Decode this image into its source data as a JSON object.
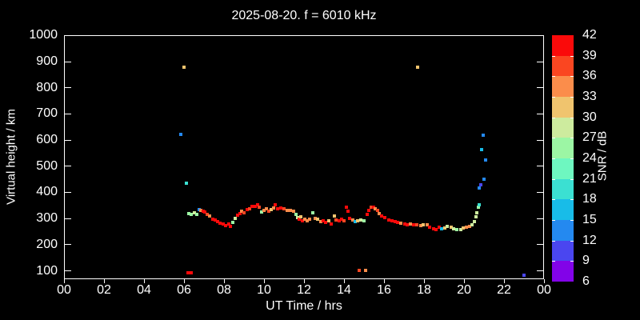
{
  "title": "2025-08-20. f = 6010 kHz",
  "colors": {
    "background": "#000000",
    "foreground": "#ffffff"
  },
  "chart_data": {
    "type": "scatter",
    "title": "2025-08-20. f = 6010 kHz",
    "xlabel": "UT Time / hrs",
    "ylabel": "Virtual height / km",
    "xlim": [
      0,
      24
    ],
    "ylim": [
      65,
      1005
    ],
    "grid": false,
    "x_ticks": [
      0,
      2,
      4,
      6,
      8,
      10,
      12,
      14,
      16,
      18,
      20,
      22,
      24
    ],
    "x_tick_labels": [
      "00",
      "02",
      "04",
      "06",
      "08",
      "10",
      "12",
      "14",
      "16",
      "18",
      "20",
      "22",
      "00"
    ],
    "y_ticks": [
      100,
      200,
      300,
      400,
      500,
      600,
      700,
      800,
      900,
      1000
    ],
    "colorbar": {
      "label": "SNR / dB",
      "position": "right",
      "ticks": [
        42,
        39,
        36,
        33,
        30,
        27,
        24,
        21,
        18,
        15,
        12,
        9,
        6
      ],
      "segments": [
        {
          "lo": 39,
          "hi": 42,
          "color": "#fa0a0a"
        },
        {
          "lo": 36,
          "hi": 39,
          "color": "#fa4621"
        },
        {
          "lo": 33,
          "hi": 36,
          "color": "#fb8d4b"
        },
        {
          "lo": 30,
          "hi": 33,
          "color": "#f0c46e"
        },
        {
          "lo": 27,
          "hi": 30,
          "color": "#cdeb9e"
        },
        {
          "lo": 24,
          "hi": 27,
          "color": "#9cf6a4"
        },
        {
          "lo": 21,
          "hi": 24,
          "color": "#6ef7c0"
        },
        {
          "lo": 18,
          "hi": 21,
          "color": "#3be0d2"
        },
        {
          "lo": 15,
          "hi": 18,
          "color": "#18bce8"
        },
        {
          "lo": 12,
          "hi": 15,
          "color": "#2489f0"
        },
        {
          "lo": 9,
          "hi": 12,
          "color": "#4a46f0"
        },
        {
          "lo": 6,
          "hi": 9,
          "color": "#8203e8"
        }
      ]
    },
    "points_format": [
      "ut_hours",
      "virtual_height_km",
      "snr_db"
    ],
    "points": [
      [
        5.8,
        625,
        13.5
      ],
      [
        5.96,
        882,
        31.5
      ],
      [
        6.08,
        437,
        19.5
      ],
      [
        6.16,
        95,
        40.5
      ],
      [
        6.3,
        95,
        40.5
      ],
      [
        6.2,
        322,
        25.5
      ],
      [
        6.33,
        318,
        25.5
      ],
      [
        6.46,
        325,
        28.5
      ],
      [
        6.58,
        320,
        25.5
      ],
      [
        6.7,
        337,
        13.5
      ],
      [
        6.8,
        334,
        34.5
      ],
      [
        6.9,
        330,
        40.5
      ],
      [
        7.0,
        327,
        40.5
      ],
      [
        7.12,
        320,
        37.5
      ],
      [
        7.25,
        312,
        34.5
      ],
      [
        7.38,
        302,
        40.5
      ],
      [
        7.5,
        296,
        40.5
      ],
      [
        7.62,
        290,
        40.5
      ],
      [
        7.75,
        285,
        40.5
      ],
      [
        7.9,
        281,
        40.5
      ],
      [
        8.05,
        276,
        40.5
      ],
      [
        8.18,
        281,
        40.5
      ],
      [
        8.28,
        274,
        40.5
      ],
      [
        8.4,
        288,
        25.5
      ],
      [
        8.52,
        305,
        28.5
      ],
      [
        8.62,
        315,
        40.5
      ],
      [
        8.75,
        322,
        40.5
      ],
      [
        8.85,
        330,
        34.5
      ],
      [
        8.96,
        325,
        37.5
      ],
      [
        9.1,
        337,
        40.5
      ],
      [
        9.22,
        341,
        37.5
      ],
      [
        9.35,
        350,
        40.5
      ],
      [
        9.5,
        350,
        40.5
      ],
      [
        9.62,
        357,
        40.5
      ],
      [
        9.72,
        345,
        37.5
      ],
      [
        9.82,
        328,
        25.5
      ],
      [
        9.95,
        334,
        34.5
      ],
      [
        10.06,
        340,
        34.5
      ],
      [
        10.18,
        330,
        37.5
      ],
      [
        10.3,
        337,
        31.5
      ],
      [
        10.42,
        343,
        34.5
      ],
      [
        10.52,
        357,
        40.5
      ],
      [
        10.65,
        340,
        40.5
      ],
      [
        10.8,
        344,
        40.5
      ],
      [
        10.95,
        340,
        37.5
      ],
      [
        11.1,
        335,
        34.5
      ],
      [
        11.28,
        334,
        34.5
      ],
      [
        11.42,
        330,
        34.5
      ],
      [
        11.55,
        319,
        25.5
      ],
      [
        11.64,
        308,
        28.5
      ],
      [
        11.72,
        302,
        40.5
      ],
      [
        11.78,
        310,
        31.5
      ],
      [
        11.86,
        295,
        40.5
      ],
      [
        12.0,
        300,
        34.5
      ],
      [
        12.12,
        293,
        34.5
      ],
      [
        12.25,
        301,
        34.5
      ],
      [
        12.4,
        325,
        25.5
      ],
      [
        12.52,
        303,
        34.5
      ],
      [
        12.65,
        300,
        31.5
      ],
      [
        12.78,
        292,
        34.5
      ],
      [
        12.9,
        294,
        40.5
      ],
      [
        13.05,
        287,
        40.5
      ],
      [
        13.2,
        294,
        31.5
      ],
      [
        13.32,
        283,
        40.5
      ],
      [
        13.46,
        312,
        31.5
      ],
      [
        13.56,
        297,
        37.5
      ],
      [
        13.7,
        294,
        40.5
      ],
      [
        13.82,
        300,
        40.5
      ],
      [
        13.95,
        294,
        37.5
      ],
      [
        14.06,
        345,
        40.5
      ],
      [
        14.14,
        330,
        40.5
      ],
      [
        14.22,
        303,
        40.5
      ],
      [
        14.38,
        298,
        34.5
      ],
      [
        14.5,
        290,
        16.5
      ],
      [
        14.65,
        293,
        31.5
      ],
      [
        14.8,
        296,
        28.5
      ],
      [
        14.95,
        293,
        25.5
      ],
      [
        15.1,
        318,
        40.5
      ],
      [
        15.2,
        333,
        40.5
      ],
      [
        15.3,
        345,
        37.5
      ],
      [
        15.42,
        347,
        40.5
      ],
      [
        15.52,
        340,
        34.5
      ],
      [
        15.62,
        333,
        37.5
      ],
      [
        15.72,
        322,
        34.5
      ],
      [
        15.85,
        313,
        40.5
      ],
      [
        16.0,
        306,
        40.5
      ],
      [
        16.18,
        298,
        40.5
      ],
      [
        16.35,
        293,
        40.5
      ],
      [
        16.5,
        290,
        40.5
      ],
      [
        16.65,
        287,
        40.5
      ],
      [
        16.8,
        285,
        34.5
      ],
      [
        17.0,
        283,
        40.5
      ],
      [
        17.12,
        280,
        40.5
      ],
      [
        17.28,
        281,
        34.5
      ],
      [
        17.45,
        278,
        40.5
      ],
      [
        17.6,
        278,
        37.5
      ],
      [
        17.78,
        275,
        34.5
      ],
      [
        17.92,
        280,
        31.5
      ],
      [
        18.1,
        278,
        34.5
      ],
      [
        18.25,
        271,
        40.5
      ],
      [
        18.42,
        264,
        40.5
      ],
      [
        18.56,
        262,
        40.5
      ],
      [
        18.7,
        270,
        40.5
      ],
      [
        18.82,
        265,
        16.5
      ],
      [
        19.0,
        268,
        31.5
      ],
      [
        19.12,
        273,
        28.5
      ],
      [
        19.3,
        271,
        31.5
      ],
      [
        19.45,
        264,
        28.5
      ],
      [
        19.6,
        260,
        25.5
      ],
      [
        19.78,
        261,
        28.5
      ],
      [
        19.92,
        268,
        31.5
      ],
      [
        20.08,
        270,
        34.5
      ],
      [
        20.22,
        272,
        34.5
      ],
      [
        20.35,
        278,
        28.5
      ],
      [
        20.46,
        290,
        28.5
      ],
      [
        20.54,
        310,
        28.5
      ],
      [
        20.6,
        325,
        28.5
      ],
      [
        20.66,
        345,
        25.5
      ],
      [
        20.7,
        355,
        19.5
      ],
      [
        17.64,
        882,
        31.5
      ],
      [
        14.72,
        105,
        37.5
      ],
      [
        15.04,
        105,
        34.5
      ],
      [
        20.72,
        420,
        13.5
      ],
      [
        20.78,
        432,
        10.5
      ],
      [
        20.94,
        455,
        13.5
      ],
      [
        20.84,
        568,
        16.5
      ],
      [
        20.9,
        623,
        13.5
      ],
      [
        21.02,
        528,
        13.5
      ],
      [
        22.96,
        85,
        10.5
      ]
    ]
  }
}
